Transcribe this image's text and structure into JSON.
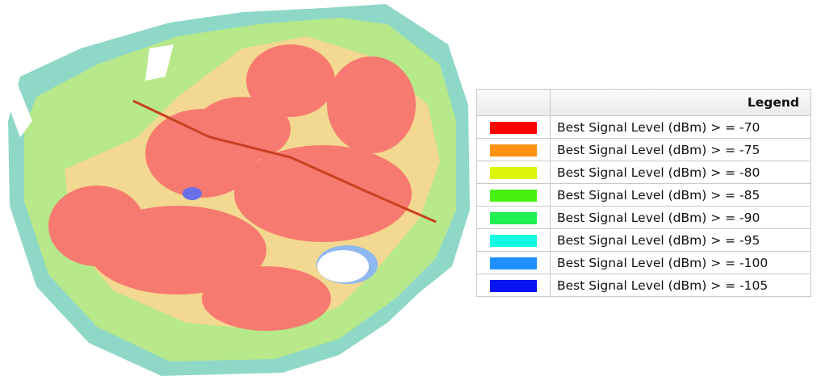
{
  "legend": {
    "title": "Legend",
    "items": [
      {
        "label": "Best Signal Level (dBm) > = -70",
        "color": "#ff0000"
      },
      {
        "label": "Best Signal Level (dBm) > = -75",
        "color": "#ff9010"
      },
      {
        "label": "Best Signal Level (dBm) > = -80",
        "color": "#dcf50a"
      },
      {
        "label": "Best Signal Level (dBm) > = -85",
        "color": "#48f010"
      },
      {
        "label": "Best Signal Level (dBm) > = -90",
        "color": "#20f050"
      },
      {
        "label": "Best Signal Level (dBm) > = -95",
        "color": "#10fce0"
      },
      {
        "label": "Best Signal Level (dBm) > = -100",
        "color": "#1e90ff"
      },
      {
        "label": "Best Signal Level (dBm) > = -105",
        "color": "#0a14f0"
      }
    ]
  }
}
